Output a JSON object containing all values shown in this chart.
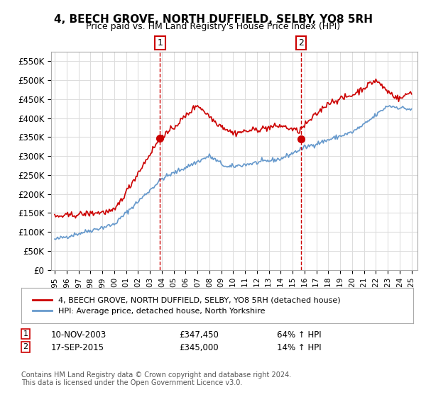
{
  "title": "4, BEECH GROVE, NORTH DUFFIELD, SELBY, YO8 5RH",
  "subtitle": "Price paid vs. HM Land Registry's House Price Index (HPI)",
  "ylabel_ticks": [
    0,
    50000,
    100000,
    150000,
    200000,
    250000,
    300000,
    350000,
    400000,
    450000,
    500000,
    550000
  ],
  "ylabel_labels": [
    "£0",
    "£50K",
    "£100K",
    "£150K",
    "£200K",
    "£250K",
    "£300K",
    "£350K",
    "£400K",
    "£450K",
    "£500K",
    "£550K"
  ],
  "ylim": [
    0,
    575000
  ],
  "xlim_start": 1995.0,
  "xlim_end": 2025.5,
  "sale1_x": 2003.86,
  "sale1_y": 347450,
  "sale1_label": "1",
  "sale1_date": "10-NOV-2003",
  "sale1_price": "£347,450",
  "sale1_hpi": "64% ↑ HPI",
  "sale2_x": 2015.71,
  "sale2_y": 345000,
  "sale2_label": "2",
  "sale2_date": "17-SEP-2015",
  "sale2_price": "£345,000",
  "sale2_hpi": "14% ↑ HPI",
  "red_line_color": "#cc0000",
  "blue_line_color": "#6699cc",
  "marker_box_color": "#cc0000",
  "legend1": "4, BEECH GROVE, NORTH DUFFIELD, SELBY, YO8 5RH (detached house)",
  "legend2": "HPI: Average price, detached house, North Yorkshire",
  "footer1": "Contains HM Land Registry data © Crown copyright and database right 2024.",
  "footer2": "This data is licensed under the Open Government Licence v3.0.",
  "bg_color": "#ffffff",
  "grid_color": "#dddddd",
  "x_ticks": [
    1995,
    1996,
    1997,
    1998,
    1999,
    2000,
    2001,
    2002,
    2003,
    2004,
    2005,
    2006,
    2007,
    2008,
    2009,
    2010,
    2011,
    2012,
    2013,
    2014,
    2015,
    2016,
    2017,
    2018,
    2019,
    2020,
    2021,
    2022,
    2023,
    2024,
    2025
  ]
}
